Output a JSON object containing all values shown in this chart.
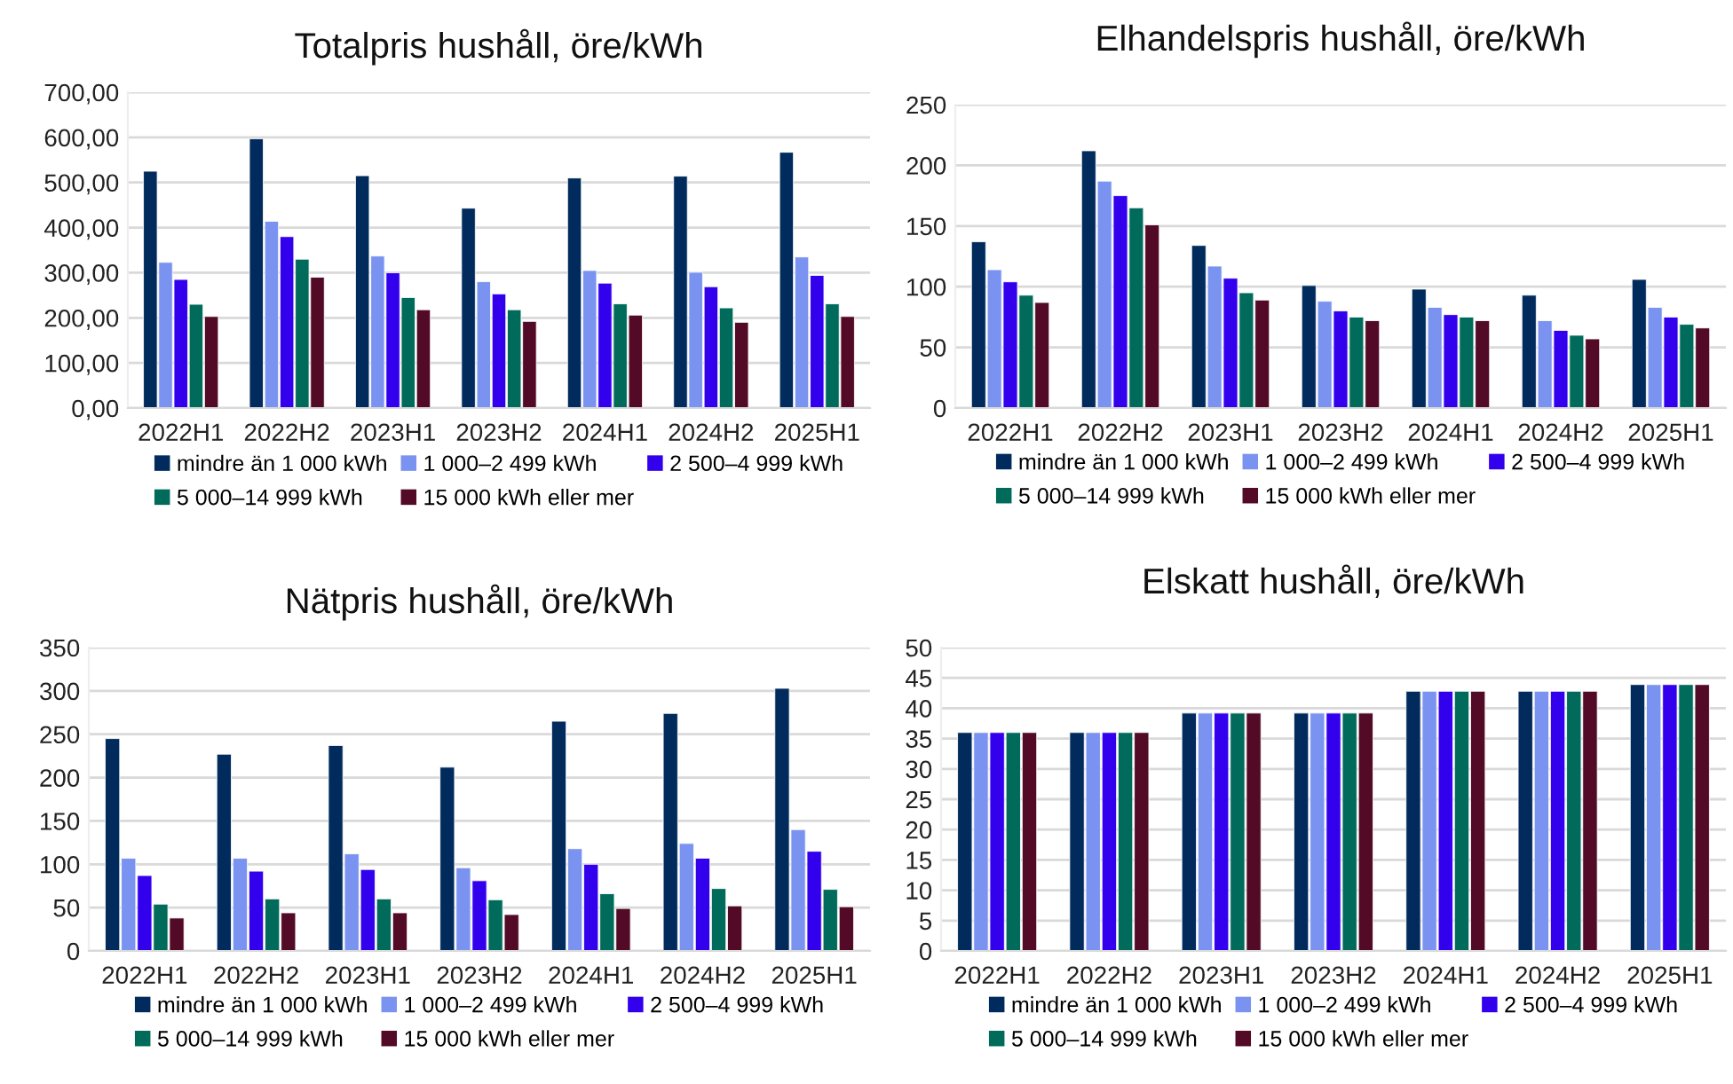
{
  "chart_data": [
    {
      "type": "bar",
      "title": "Totalpris hushåll, öre/kWh",
      "categories": [
        "2022H1",
        "2022H2",
        "2023H1",
        "2023H2",
        "2024H1",
        "2024H2",
        "2025H1"
      ],
      "series": [
        {
          "name": "mindre än 1 000 kWh",
          "color": "#002b5c",
          "values": [
            525,
            597,
            515,
            443,
            510,
            514,
            567
          ]
        },
        {
          "name": "1 000–2 499 kWh",
          "color": "#7b93f0",
          "values": [
            323,
            414,
            337,
            280,
            305,
            301,
            335
          ]
        },
        {
          "name": "2 500–4 999 kWh",
          "color": "#3300ee",
          "values": [
            285,
            380,
            300,
            253,
            277,
            269,
            294
          ]
        },
        {
          "name": "5 000–14 999 kWh",
          "color": "#006b5a",
          "values": [
            230,
            330,
            245,
            218,
            231,
            222,
            231
          ]
        },
        {
          "name": "15 000 kWh eller mer",
          "color": "#520a26",
          "values": [
            203,
            290,
            218,
            192,
            206,
            190,
            203
          ]
        }
      ],
      "ylim": [
        0,
        700
      ],
      "yticks": [
        {
          "value": 0,
          "label": "0,00"
        },
        {
          "value": 100,
          "label": "100,00"
        },
        {
          "value": 200,
          "label": "200,00"
        },
        {
          "value": 300,
          "label": "300,00"
        },
        {
          "value": 400,
          "label": "400,00"
        },
        {
          "value": 500,
          "label": "500,00"
        },
        {
          "value": 600,
          "label": "600,00"
        },
        {
          "value": 700,
          "label": "700,00"
        }
      ],
      "grid": "y",
      "legend": "bottom"
    },
    {
      "type": "bar",
      "title": "Elhandelspris hushåll, öre/kWh",
      "categories": [
        "2022H1",
        "2022H2",
        "2023H1",
        "2023H2",
        "2024H1",
        "2024H2",
        "2025H1"
      ],
      "series": [
        {
          "name": "mindre än 1 000 kWh",
          "color": "#002b5c",
          "values": [
            137,
            212,
            134,
            101,
            98,
            93,
            106
          ]
        },
        {
          "name": "1 000–2 499 kWh",
          "color": "#7b93f0",
          "values": [
            114,
            187,
            117,
            88,
            83,
            72,
            83
          ]
        },
        {
          "name": "2 500–4 999 kWh",
          "color": "#3300ee",
          "values": [
            104,
            175,
            107,
            80,
            77,
            64,
            75
          ]
        },
        {
          "name": "5 000–14 999 kWh",
          "color": "#006b5a",
          "values": [
            93,
            165,
            95,
            75,
            75,
            60,
            69
          ]
        },
        {
          "name": "15 000 kWh eller mer",
          "color": "#520a26",
          "values": [
            87,
            151,
            89,
            72,
            72,
            57,
            66
          ]
        }
      ],
      "ylim": [
        0,
        250
      ],
      "yticks": [
        0,
        50,
        100,
        150,
        200,
        250
      ],
      "grid": "y",
      "legend": "bottom"
    },
    {
      "type": "bar",
      "title": "Nätpris hushåll, öre/kWh",
      "categories": [
        "2022H1",
        "2022H2",
        "2023H1",
        "2023H2",
        "2024H1",
        "2024H2",
        "2025H1"
      ],
      "series": [
        {
          "name": "mindre än 1 000 kWh",
          "color": "#002b5c",
          "values": [
            245,
            227,
            237,
            212,
            265,
            274,
            303
          ]
        },
        {
          "name": "1 000–2 499 kWh",
          "color": "#7b93f0",
          "values": [
            107,
            107,
            112,
            96,
            118,
            124,
            140
          ]
        },
        {
          "name": "2 500–4 999 kWh",
          "color": "#3300ee",
          "values": [
            87,
            92,
            94,
            81,
            100,
            107,
            115
          ]
        },
        {
          "name": "5 000–14 999 kWh",
          "color": "#006b5a",
          "values": [
            54,
            60,
            60,
            59,
            66,
            72,
            71
          ]
        },
        {
          "name": "15 000 kWh eller mer",
          "color": "#520a26",
          "values": [
            38,
            44,
            44,
            42,
            49,
            52,
            51
          ]
        }
      ],
      "ylim": [
        0,
        350
      ],
      "yticks": [
        0,
        50,
        100,
        150,
        200,
        250,
        300,
        350
      ],
      "grid": "y",
      "legend": "bottom"
    },
    {
      "type": "bar",
      "title": "Elskatt hushåll, öre/kWh",
      "categories": [
        "2022H1",
        "2022H2",
        "2023H1",
        "2023H2",
        "2024H1",
        "2024H2",
        "2025H1"
      ],
      "series": [
        {
          "name": "mindre än 1 000 kWh",
          "color": "#002b5c",
          "values": [
            36.0,
            36.0,
            39.2,
            39.2,
            42.8,
            42.8,
            43.9
          ]
        },
        {
          "name": "1 000–2 499 kWh",
          "color": "#7b93f0",
          "values": [
            36.0,
            36.0,
            39.2,
            39.2,
            42.8,
            42.8,
            43.9
          ]
        },
        {
          "name": "2 500–4 999 kWh",
          "color": "#3300ee",
          "values": [
            36.0,
            36.0,
            39.2,
            39.2,
            42.8,
            42.8,
            43.9
          ]
        },
        {
          "name": "5 000–14 999 kWh",
          "color": "#006b5a",
          "values": [
            36.0,
            36.0,
            39.2,
            39.2,
            42.8,
            42.8,
            43.9
          ]
        },
        {
          "name": "15 000 kWh eller mer",
          "color": "#520a26",
          "values": [
            36.0,
            36.0,
            39.2,
            39.2,
            42.8,
            42.8,
            43.9
          ]
        }
      ],
      "ylim": [
        0,
        50
      ],
      "yticks": [
        0,
        5,
        10,
        15,
        20,
        25,
        30,
        35,
        40,
        45,
        50
      ],
      "grid": "y",
      "legend": "bottom"
    }
  ]
}
